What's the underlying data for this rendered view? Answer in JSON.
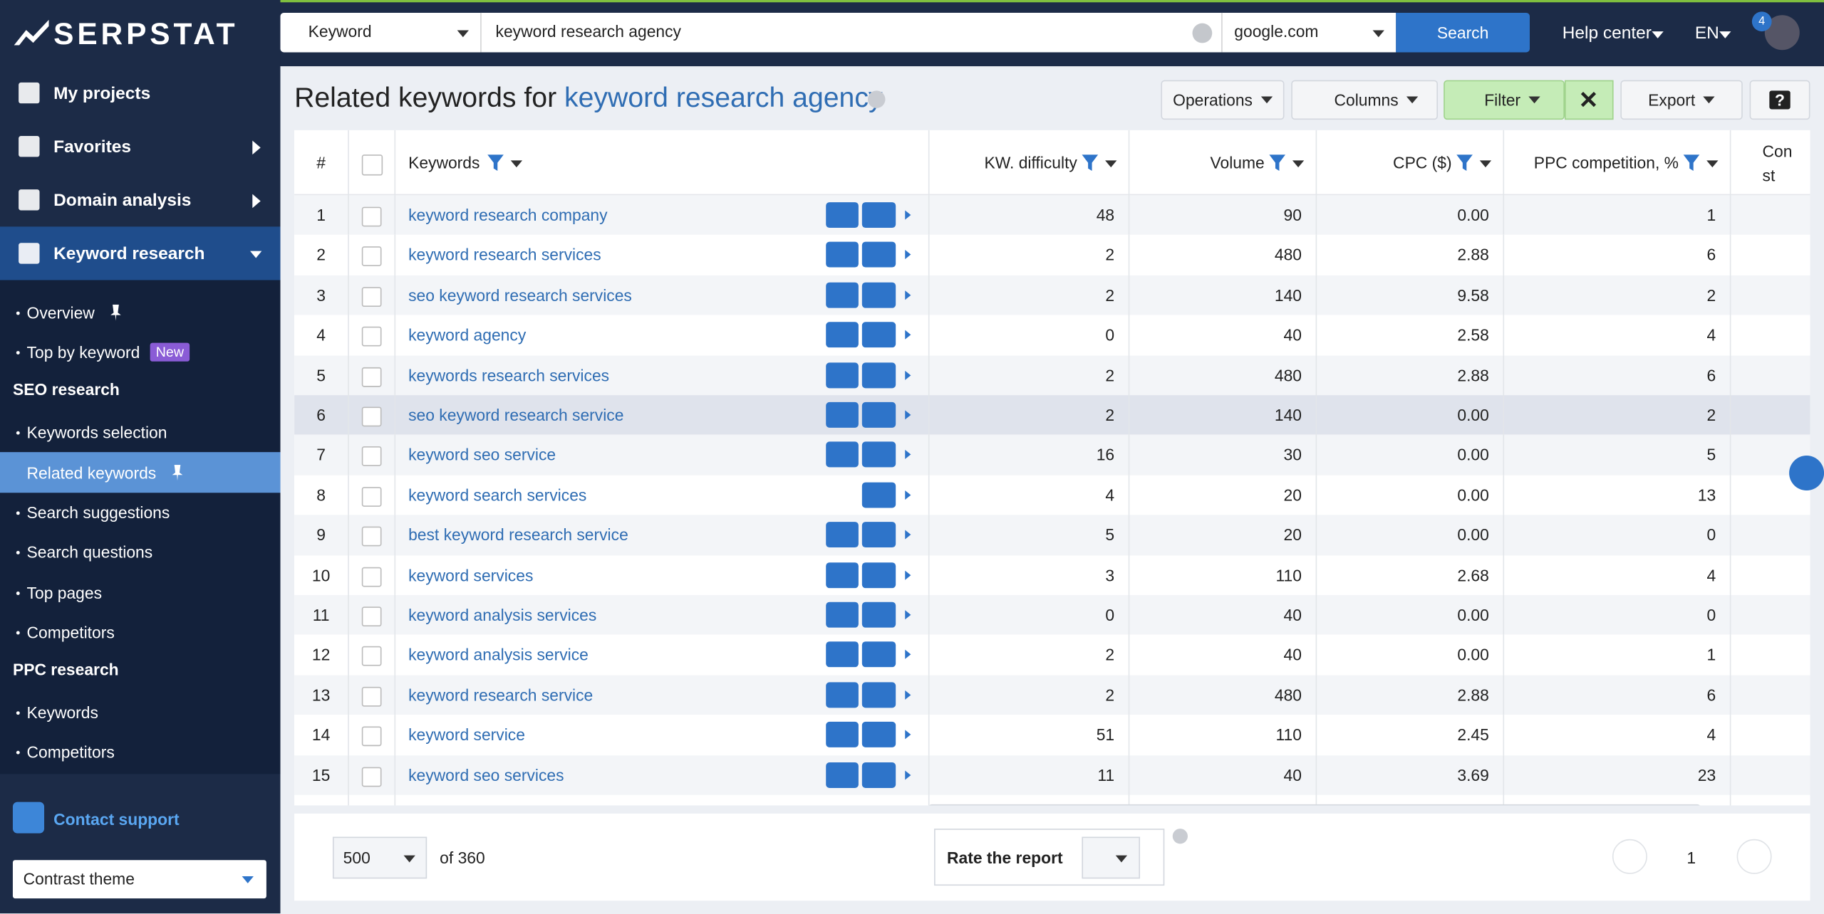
{
  "topbar": {
    "logo": "SERPSTAT",
    "search_type": "Keyword",
    "query": "keyword research agency",
    "engine": "google.com",
    "search_button": "Search",
    "help": "Help center",
    "lang": "EN",
    "notifications": "4"
  },
  "sidebar": {
    "main": [
      "My projects",
      "Favorites",
      "Domain analysis",
      "Keyword research"
    ],
    "sub": [
      {
        "label": "Overview"
      },
      {
        "label": "Top by keyword",
        "badge": "New"
      },
      {
        "section": "SEO research"
      },
      {
        "label": "Keywords selection"
      },
      {
        "label": "Related keywords"
      },
      {
        "label": "Search suggestions"
      },
      {
        "label": "Search questions"
      },
      {
        "label": "Top pages"
      },
      {
        "label": "Competitors"
      },
      {
        "section": "PPC research"
      },
      {
        "label": "Keywords"
      },
      {
        "label": "Competitors"
      }
    ],
    "contact": "Contact support",
    "theme": "Contrast theme"
  },
  "header": {
    "title": "Related keywords for",
    "query": "keyword research agency",
    "buttons": [
      "Operations",
      "Columns",
      "Filter",
      "Export",
      "?"
    ]
  },
  "table": {
    "columns": [
      "#",
      "Keywords",
      "KW. difficulty",
      "Volume",
      "CPC ($)",
      "PPC competition, %",
      "Con st"
    ],
    "rows": [
      [
        "1",
        "keyword research company",
        "48",
        "90",
        "0.00",
        "1"
      ],
      [
        "2",
        "keyword research services",
        "2",
        "480",
        "2.88",
        "6"
      ],
      [
        "3",
        "seo keyword research services",
        "2",
        "140",
        "9.58",
        "2"
      ],
      [
        "4",
        "keyword agency",
        "0",
        "40",
        "2.58",
        "4"
      ],
      [
        "5",
        "keywords research services",
        "2",
        "480",
        "2.88",
        "6"
      ],
      [
        "6",
        "seo keyword research service",
        "2",
        "140",
        "0.00",
        "2"
      ],
      [
        "7",
        "keyword seo service",
        "16",
        "30",
        "0.00",
        "5"
      ],
      [
        "8",
        "keyword search services",
        "4",
        "20",
        "0.00",
        "13"
      ],
      [
        "9",
        "best keyword research service",
        "5",
        "20",
        "0.00",
        "0"
      ],
      [
        "10",
        "keyword services",
        "3",
        "110",
        "2.68",
        "4"
      ],
      [
        "11",
        "keyword analysis services",
        "0",
        "40",
        "0.00",
        "0"
      ],
      [
        "12",
        "keyword analysis service",
        "2",
        "40",
        "0.00",
        "1"
      ],
      [
        "13",
        "keyword research service",
        "2",
        "480",
        "2.88",
        "6"
      ],
      [
        "14",
        "keyword service",
        "51",
        "110",
        "2.45",
        "4"
      ],
      [
        "15",
        "keyword seo services",
        "11",
        "40",
        "3.69",
        "23"
      ]
    ]
  },
  "footer": {
    "per_page": "500",
    "total": "of 360",
    "rate": "Rate the report",
    "page": "1"
  }
}
